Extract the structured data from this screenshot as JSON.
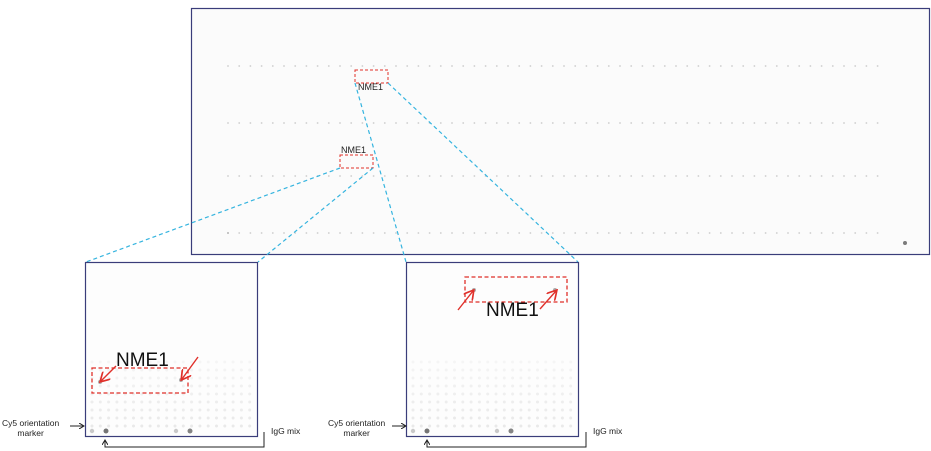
{
  "figure": {
    "overview_label_top": "NME1",
    "overview_label_left": "NME1",
    "zoom_left": {
      "protein_label": "NME1",
      "cy5_label_line1": "Cy5 orientation",
      "cy5_label_line2": "marker",
      "igg_label": "IgG mix"
    },
    "zoom_right": {
      "protein_label": "NME1",
      "cy5_label_line1": "Cy5 orientation",
      "cy5_label_line2": "marker",
      "igg_label": "IgG mix"
    },
    "colors": {
      "frame": "#3a3d7a",
      "highlight_box": "#e0302a",
      "connector": "#35b4df",
      "arrow": "#e0302a",
      "spot": "#8a8a8a"
    },
    "icons": [
      "red-arrow-icon",
      "black-arrow-icon"
    ]
  }
}
